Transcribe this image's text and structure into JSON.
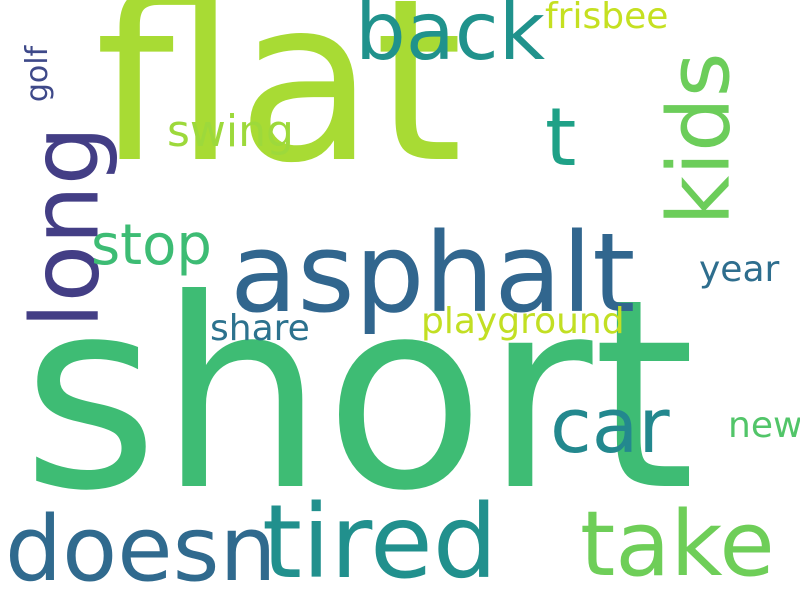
{
  "words": {
    "flat": {
      "text": "flat",
      "color": "#a8db34"
    },
    "short": {
      "text": "short",
      "color": "#3ebc74"
    },
    "asphalt": {
      "text": "asphalt",
      "color": "#31668e"
    },
    "back": {
      "text": "back",
      "color": "#20928c"
    },
    "kids": {
      "text": "kids",
      "color": "#6ccd5a"
    },
    "long": {
      "text": "long",
      "color": "#433e85"
    },
    "t": {
      "text": "t",
      "color": "#1fa187"
    },
    "swing": {
      "text": "swing",
      "color": "#9dd93b"
    },
    "stop": {
      "text": "stop",
      "color": "#3dbc74"
    },
    "frisbee": {
      "text": "frisbee",
      "color": "#c5e021"
    },
    "golf": {
      "text": "golf",
      "color": "#3e4989"
    },
    "year": {
      "text": "year",
      "color": "#2e6e8e"
    },
    "share": {
      "text": "share",
      "color": "#2c728e"
    },
    "playground": {
      "text": "playground",
      "color": "#c2df23"
    },
    "car": {
      "text": "car",
      "color": "#23888e"
    },
    "new": {
      "text": "new",
      "color": "#52c569"
    },
    "doesn": {
      "text": "doesn",
      "color": "#306a8e"
    },
    "tired": {
      "text": "tired",
      "color": "#21908d"
    },
    "take": {
      "text": "take",
      "color": "#6ece58"
    }
  }
}
